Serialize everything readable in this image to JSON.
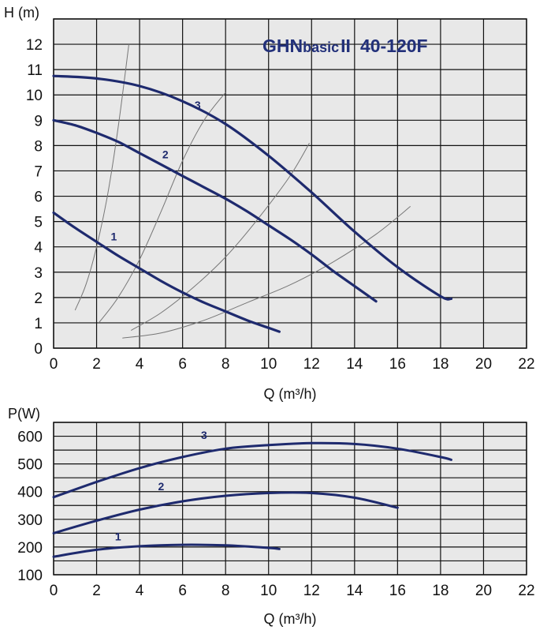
{
  "colors": {
    "plot_background": "#e8e8e8",
    "grid": "#111111",
    "curve": "#1e2a6e",
    "system_curve": "#777777",
    "title": "#22307a"
  },
  "title": {
    "part1": "GHN",
    "part2": "basic",
    "part3": "II",
    "part4": "40-120F"
  },
  "chart_data": [
    {
      "type": "line",
      "ylabel": "H (m)",
      "xlabel": "Q (m³/h)",
      "xlim": [
        0,
        22
      ],
      "ylim": [
        0,
        13
      ],
      "x_ticks": [
        "0",
        "2",
        "4",
        "6",
        "8",
        "10",
        "12",
        "14",
        "16",
        "18",
        "20",
        "22"
      ],
      "y_ticks": [
        "0",
        "1",
        "2",
        "3",
        "4",
        "5",
        "6",
        "7",
        "8",
        "9",
        "10",
        "11",
        "12"
      ],
      "grid": true,
      "series": [
        {
          "name": "1",
          "points": [
            [
              0,
              5.35
            ],
            [
              1,
              4.75
            ],
            [
              2,
              4.2
            ],
            [
              3,
              3.65
            ],
            [
              4,
              3.15
            ],
            [
              5,
              2.65
            ],
            [
              6,
              2.2
            ],
            [
              7,
              1.8
            ],
            [
              8,
              1.45
            ],
            [
              9,
              1.1
            ],
            [
              10,
              0.8
            ],
            [
              10.5,
              0.65
            ]
          ]
        },
        {
          "name": "2",
          "points": [
            [
              0,
              9.0
            ],
            [
              1,
              8.8
            ],
            [
              2,
              8.5
            ],
            [
              3,
              8.15
            ],
            [
              4,
              7.7
            ],
            [
              5,
              7.25
            ],
            [
              6,
              6.8
            ],
            [
              7,
              6.35
            ],
            [
              8,
              5.9
            ],
            [
              9,
              5.4
            ],
            [
              10,
              4.85
            ],
            [
              11,
              4.3
            ],
            [
              12,
              3.7
            ],
            [
              13,
              3.05
            ],
            [
              14,
              2.45
            ],
            [
              15,
              1.85
            ]
          ]
        },
        {
          "name": "3",
          "points": [
            [
              0,
              10.75
            ],
            [
              2,
              10.65
            ],
            [
              4,
              10.35
            ],
            [
              6,
              9.75
            ],
            [
              8,
              8.85
            ],
            [
              10,
              7.6
            ],
            [
              12,
              6.15
            ],
            [
              14,
              4.6
            ],
            [
              16,
              3.2
            ],
            [
              18,
              2.05
            ],
            [
              18.5,
              1.95
            ]
          ]
        }
      ],
      "system_curves": [
        [
          [
            1.0,
            1.5
          ],
          [
            1.5,
            2.5
          ],
          [
            2.0,
            4.0
          ],
          [
            2.5,
            6.0
          ],
          [
            3.0,
            8.7
          ],
          [
            3.5,
            12.0
          ]
        ],
        [
          [
            2.1,
            1.0
          ],
          [
            3.0,
            2.0
          ],
          [
            4.0,
            3.5
          ],
          [
            5.0,
            5.4
          ],
          [
            6.0,
            7.4
          ],
          [
            7.0,
            9.0
          ],
          [
            8.0,
            10.1
          ]
        ],
        [
          [
            3.6,
            0.7
          ],
          [
            5.0,
            1.4
          ],
          [
            6.5,
            2.4
          ],
          [
            8.0,
            3.6
          ],
          [
            9.5,
            5.1
          ],
          [
            11.0,
            6.8
          ],
          [
            11.9,
            8.1
          ]
        ],
        [
          [
            3.2,
            0.4
          ],
          [
            5.0,
            0.6
          ],
          [
            7.0,
            1.1
          ],
          [
            9.0,
            1.8
          ],
          [
            11.0,
            2.5
          ],
          [
            13.0,
            3.4
          ],
          [
            15.0,
            4.5
          ],
          [
            16.6,
            5.6
          ]
        ]
      ],
      "curve_label_positions": [
        [
          2.8,
          4.25
        ],
        [
          5.2,
          7.5
        ],
        [
          6.7,
          9.45
        ]
      ]
    },
    {
      "type": "line",
      "ylabel": "P(W)",
      "xlabel": "Q (m³/h)",
      "xlim": [
        0,
        22
      ],
      "ylim": [
        100,
        650
      ],
      "x_ticks": [
        "0",
        "2",
        "4",
        "6",
        "8",
        "10",
        "12",
        "14",
        "16",
        "18",
        "20",
        "22"
      ],
      "y_ticks": [
        "100",
        "200",
        "300",
        "400",
        "500",
        "600"
      ],
      "grid": true,
      "series": [
        {
          "name": "1",
          "points": [
            [
              0,
              165
            ],
            [
              2,
              190
            ],
            [
              4,
              203
            ],
            [
              6,
              208
            ],
            [
              8,
              206
            ],
            [
              10,
              197
            ],
            [
              10.5,
              193
            ]
          ]
        },
        {
          "name": "2",
          "points": [
            [
              0,
              250
            ],
            [
              2,
              295
            ],
            [
              4,
              335
            ],
            [
              6,
              365
            ],
            [
              8,
              385
            ],
            [
              10,
              395
            ],
            [
              12,
              395
            ],
            [
              14,
              378
            ],
            [
              16,
              342
            ]
          ]
        },
        {
          "name": "3",
          "points": [
            [
              0,
              380
            ],
            [
              2,
              435
            ],
            [
              4,
              485
            ],
            [
              6,
              525
            ],
            [
              8,
              555
            ],
            [
              10,
              568
            ],
            [
              12,
              575
            ],
            [
              14,
              572
            ],
            [
              16,
              555
            ],
            [
              18,
              525
            ],
            [
              18.5,
              515
            ]
          ]
        }
      ],
      "curve_label_positions": [
        [
          3.0,
          224
        ],
        [
          5.0,
          405
        ],
        [
          7.0,
          590
        ]
      ]
    }
  ]
}
